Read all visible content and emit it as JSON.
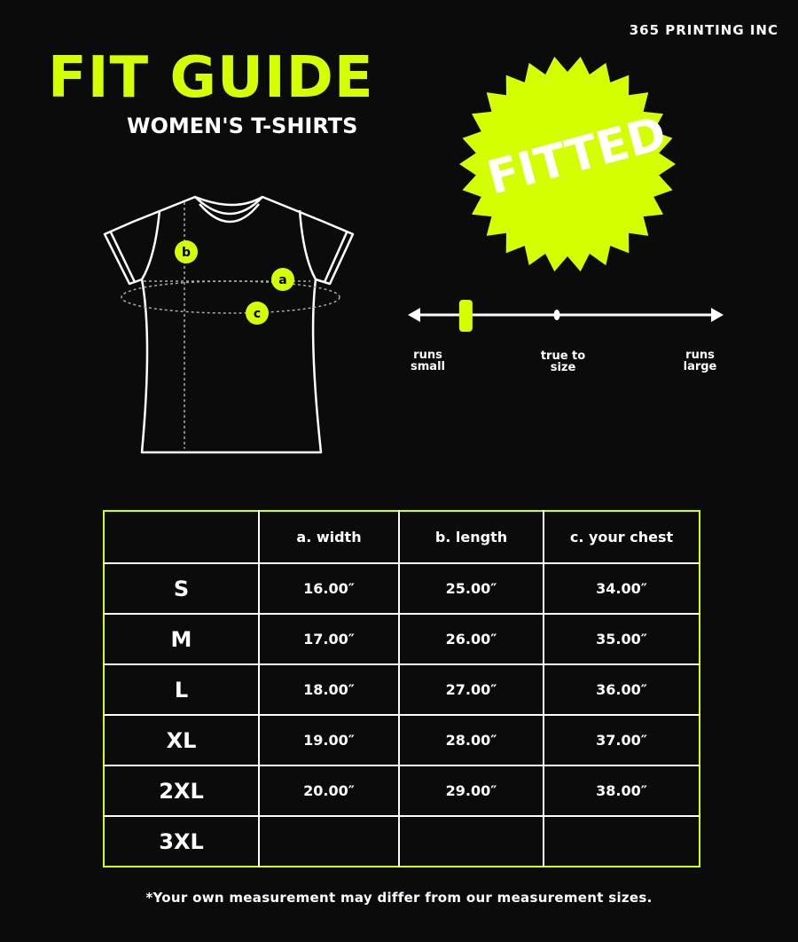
{
  "brand": "365 PRINTING INC",
  "title": "FIT GUIDE",
  "subtitle": "WOMEN'S T-SHIRTS",
  "badge": "FITTED",
  "colors": {
    "accent": "#d4ff00",
    "background": "#0b0b0b",
    "line": "#ffffff"
  },
  "diagram_markers": [
    "a",
    "b",
    "c"
  ],
  "fit_scale": {
    "labels": [
      [
        "runs",
        "small"
      ],
      [
        "true to",
        "size"
      ],
      [
        "runs",
        "large"
      ]
    ],
    "level": 0.18
  },
  "table": {
    "headers": [
      "",
      "a. width",
      "b. length",
      "c. your chest"
    ],
    "rows": [
      [
        "S",
        "16.00″",
        "25.00″",
        "34.00″"
      ],
      [
        "M",
        "17.00″",
        "26.00″",
        "35.00″"
      ],
      [
        "L",
        "18.00″",
        "27.00″",
        "36.00″"
      ],
      [
        "XL",
        "19.00″",
        "28.00″",
        "37.00″"
      ],
      [
        "2XL",
        "20.00″",
        "29.00″",
        "38.00″"
      ],
      [
        "3XL",
        "",
        "",
        ""
      ]
    ]
  },
  "note": "*Your own measurement may differ from our measurement sizes."
}
